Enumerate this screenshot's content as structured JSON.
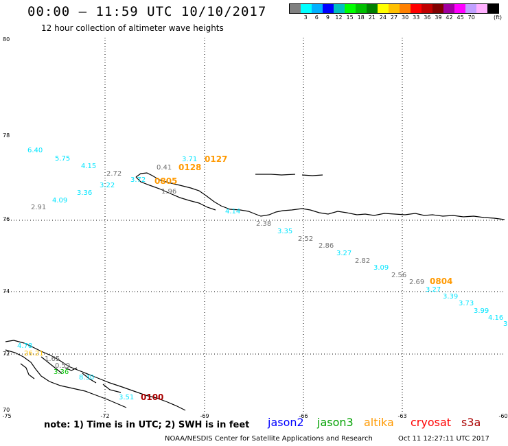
{
  "header": {
    "title": "00:00 – 11:59 UTC 10/10/2017",
    "subtitle": "12 hour collection of altimeter wave heights"
  },
  "scale": {
    "colors": [
      "#808080",
      "#00ffff",
      "#00b0ff",
      "#0000ff",
      "#00c0c0",
      "#00ff00",
      "#00c000",
      "#008000",
      "#ffff00",
      "#ffc000",
      "#ff8000",
      "#ff0000",
      "#c00000",
      "#800000",
      "#a000a0",
      "#ff00ff",
      "#c0a0ff",
      "#ffb0ff",
      "#000000"
    ],
    "labels": [
      "3",
      "6",
      "9",
      "12",
      "15",
      "18",
      "21",
      "24",
      "27",
      "30",
      "33",
      "36",
      "39",
      "42",
      "45",
      "70"
    ],
    "unit": "(ft)"
  },
  "axes": {
    "lat_labels": [
      "80",
      "78",
      "76",
      "74",
      "72",
      "70"
    ],
    "lon_labels": [
      "-75",
      "-72",
      "-69",
      "-66",
      "-63",
      "-60"
    ]
  },
  "wave_labels": [
    {
      "v": "6.40",
      "c": "#00e5ff"
    },
    {
      "v": "5.75",
      "c": "#00e5ff"
    },
    {
      "v": "4.15",
      "c": "#00e5ff"
    },
    {
      "v": "3.22",
      "c": "#00e5ff"
    },
    {
      "v": "3.36",
      "c": "#00e5ff"
    },
    {
      "v": "4.09",
      "c": "#00e5ff"
    },
    {
      "v": "2.91",
      "c": "#707070"
    },
    {
      "v": "2.72",
      "c": "#707070"
    },
    {
      "v": "3.72",
      "c": "#00e5ff"
    },
    {
      "v": "0.41",
      "c": "#707070"
    },
    {
      "v": "3.71",
      "c": "#00e5ff"
    },
    {
      "v": "1.96",
      "c": "#707070"
    },
    {
      "v": "4.14",
      "c": "#00e5ff"
    },
    {
      "v": "2.38",
      "c": "#707070"
    },
    {
      "v": "3.35",
      "c": "#00e5ff"
    },
    {
      "v": "2.52",
      "c": "#707070"
    },
    {
      "v": "2.86",
      "c": "#707070"
    },
    {
      "v": "3.27",
      "c": "#00e5ff"
    },
    {
      "v": "2.82",
      "c": "#707070"
    },
    {
      "v": "3.09",
      "c": "#00e5ff"
    },
    {
      "v": "2.56",
      "c": "#707070"
    },
    {
      "v": "2.69",
      "c": "#707070"
    },
    {
      "v": "3.27",
      "c": "#00e5ff"
    },
    {
      "v": "3.39",
      "c": "#00e5ff"
    },
    {
      "v": "3.73",
      "c": "#00e5ff"
    },
    {
      "v": "3.99",
      "c": "#00e5ff"
    },
    {
      "v": "4.16",
      "c": "#00e5ff"
    },
    {
      "v": "3",
      "c": "#00e5ff"
    },
    {
      "v": "4.78",
      "c": "#00e5ff"
    },
    {
      "v": "26.21",
      "c": "#ffc000"
    },
    {
      "v": "1.65",
      "c": "#707070"
    },
    {
      "v": "0.59",
      "c": "#707070"
    },
    {
      "v": "3.36",
      "c": "#00c000"
    },
    {
      "v": "8.30",
      "c": "#00e5ff"
    },
    {
      "v": "3.51",
      "c": "#00e5ff"
    }
  ],
  "pass_labels": [
    {
      "v": "0127",
      "c": "#ff9900"
    },
    {
      "v": "0128",
      "c": "#ff9900"
    },
    {
      "v": "0805",
      "c": "#ff9900"
    },
    {
      "v": "0804",
      "c": "#ff9900"
    },
    {
      "v": "0100",
      "c": "#aa0000"
    }
  ],
  "footer": {
    "note": "note: 1) Time is in UTC; 2) SWH is in feet",
    "legend": [
      {
        "name": "jason2",
        "color": "#0000ff"
      },
      {
        "name": "jason3",
        "color": "#00a000"
      },
      {
        "name": "altika",
        "color": "#ff9900"
      },
      {
        "name": "cryosat",
        "color": "#ff0000"
      },
      {
        "name": "s3a",
        "color": "#aa0000"
      }
    ],
    "credit": "NOAA/NESDIS Center for Satellite Applications and Research",
    "timestamp": "Oct 11 12:27:11 UTC 2017"
  }
}
